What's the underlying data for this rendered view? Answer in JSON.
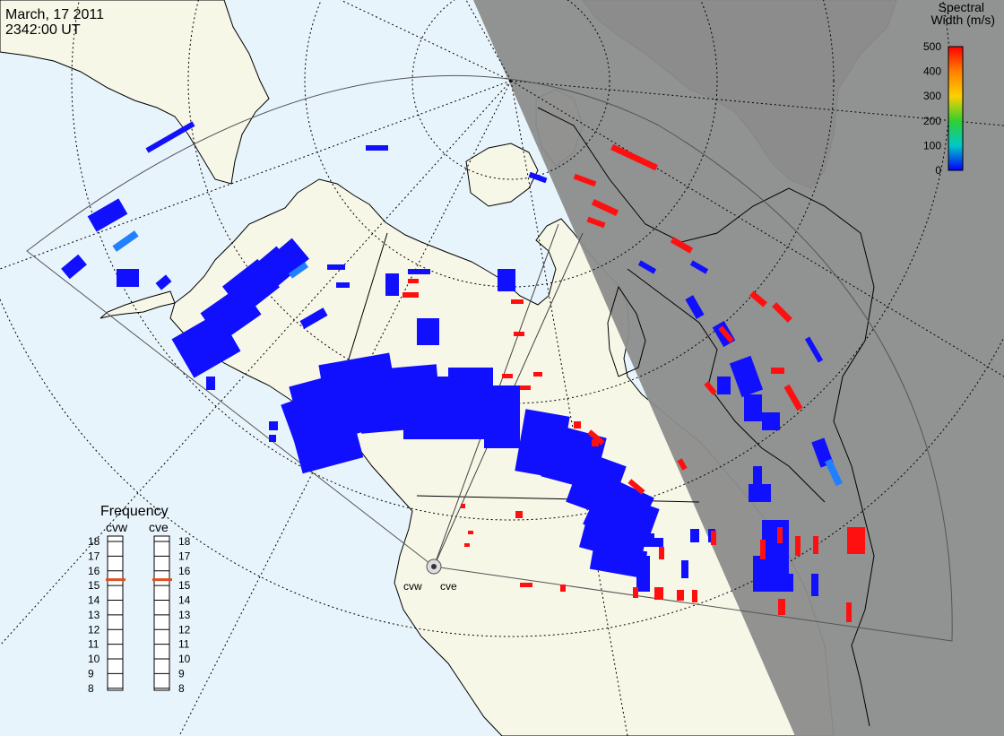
{
  "header": {
    "date": "March, 17 2011",
    "time": "2342:00 UT"
  },
  "legend": {
    "title_line1": "Spectral",
    "title_line2": "Width (m/s)",
    "ticks": [
      "500",
      "400",
      "300",
      "200",
      "100",
      "0"
    ],
    "colors": [
      "#ff0000",
      "#ff8000",
      "#ffd000",
      "#30d030",
      "#00c8c8",
      "#0000ff"
    ]
  },
  "frequency_panel": {
    "title": "Frequency",
    "radars": [
      {
        "code": "cvw",
        "current_mhz": 15.4
      },
      {
        "code": "cve",
        "current_mhz": 15.4
      }
    ],
    "scale": [
      "18",
      "17",
      "16",
      "15",
      "14",
      "13",
      "12",
      "11",
      "10",
      "9",
      "8"
    ],
    "marker_color": "#e05020"
  },
  "sites": [
    {
      "code": "cvw"
    },
    {
      "code": "cve"
    }
  ],
  "colors": {
    "ocean": "#e8f4fb",
    "land": "#f7f7e8",
    "night": "#8c8c8c",
    "coast": "#000000",
    "low_width": "#1010ff",
    "high_width": "#ff1010"
  }
}
